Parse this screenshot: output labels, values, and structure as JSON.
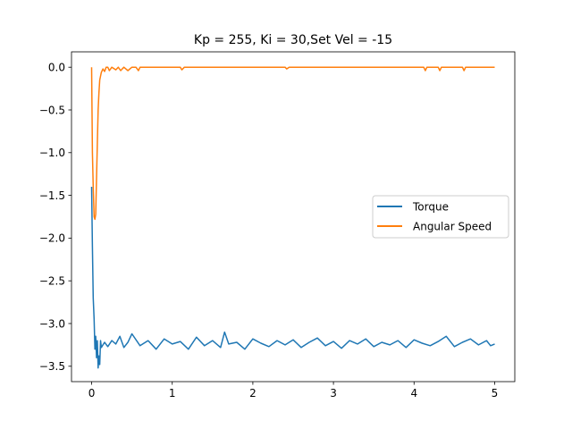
{
  "chart_data": {
    "type": "line",
    "title": "Kp = 255, Ki = 30,Set Vel = -15",
    "xlabel": "",
    "ylabel": "",
    "xlim": [
      -0.25,
      5.25
    ],
    "ylim": [
      -3.68,
      0.18
    ],
    "xticks": [
      0,
      1,
      2,
      3,
      4,
      5
    ],
    "xtick_labels": [
      "0",
      "1",
      "2",
      "3",
      "4",
      "5"
    ],
    "yticks": [
      0.0,
      -0.5,
      -1.0,
      -1.5,
      -2.0,
      -2.5,
      -3.0,
      -3.5
    ],
    "ytick_labels": [
      "0.0",
      "−0.5",
      "−1.0",
      "−1.5",
      "−2.0",
      "−2.5",
      "−3.0",
      "−3.5"
    ],
    "grid": false,
    "legend_position": "center-right",
    "series": [
      {
        "name": "Torque",
        "color": "#1f77b4",
        "x": [
          0,
          0.01,
          0.02,
          0.03,
          0.04,
          0.05,
          0.06,
          0.07,
          0.08,
          0.09,
          0.1,
          0.11,
          0.12,
          0.14,
          0.16,
          0.2,
          0.25,
          0.3,
          0.35,
          0.4,
          0.45,
          0.5,
          0.6,
          0.7,
          0.8,
          0.9,
          1.0,
          1.1,
          1.2,
          1.3,
          1.4,
          1.5,
          1.6,
          1.65,
          1.7,
          1.8,
          1.9,
          2.0,
          2.1,
          2.2,
          2.3,
          2.4,
          2.5,
          2.6,
          2.7,
          2.8,
          2.9,
          3.0,
          3.1,
          3.2,
          3.3,
          3.4,
          3.5,
          3.6,
          3.7,
          3.8,
          3.9,
          4.0,
          4.1,
          4.2,
          4.3,
          4.4,
          4.5,
          4.6,
          4.7,
          4.8,
          4.9,
          4.95,
          5.0
        ],
        "y": [
          -1.4,
          -2.1,
          -2.7,
          -2.95,
          -3.3,
          -3.15,
          -3.4,
          -3.2,
          -3.52,
          -3.38,
          -3.48,
          -3.2,
          -3.28,
          -3.25,
          -3.22,
          -3.27,
          -3.2,
          -3.24,
          -3.15,
          -3.28,
          -3.22,
          -3.12,
          -3.26,
          -3.2,
          -3.3,
          -3.18,
          -3.24,
          -3.21,
          -3.3,
          -3.16,
          -3.26,
          -3.2,
          -3.28,
          -3.1,
          -3.24,
          -3.22,
          -3.3,
          -3.18,
          -3.23,
          -3.27,
          -3.2,
          -3.25,
          -3.19,
          -3.28,
          -3.22,
          -3.17,
          -3.26,
          -3.21,
          -3.29,
          -3.2,
          -3.24,
          -3.18,
          -3.27,
          -3.22,
          -3.25,
          -3.2,
          -3.28,
          -3.19,
          -3.23,
          -3.26,
          -3.21,
          -3.15,
          -3.27,
          -3.22,
          -3.18,
          -3.25,
          -3.2,
          -3.26,
          -3.24
        ]
      },
      {
        "name": "Angular Speed",
        "color": "#ff7f0e",
        "x": [
          0,
          0.01,
          0.02,
          0.03,
          0.04,
          0.05,
          0.06,
          0.07,
          0.08,
          0.09,
          0.1,
          0.12,
          0.14,
          0.16,
          0.18,
          0.2,
          0.22,
          0.25,
          0.3,
          0.33,
          0.36,
          0.4,
          0.45,
          0.5,
          0.55,
          0.58,
          0.6,
          1.0,
          1.1,
          1.12,
          1.15,
          2.0,
          2.4,
          2.42,
          2.45,
          4.0,
          4.12,
          4.14,
          4.16,
          4.3,
          4.32,
          4.34,
          4.5,
          4.6,
          4.62,
          4.64,
          5.0
        ],
        "y": [
          0.0,
          -1.0,
          -1.4,
          -1.75,
          -1.78,
          -1.72,
          -1.3,
          -0.9,
          -0.5,
          -0.3,
          -0.15,
          -0.06,
          -0.02,
          -0.05,
          0.0,
          0.0,
          -0.04,
          0.0,
          -0.03,
          0.0,
          -0.04,
          0.0,
          -0.04,
          0.0,
          0.0,
          -0.04,
          0.0,
          0.0,
          0.0,
          -0.03,
          0.0,
          0.0,
          0.0,
          -0.02,
          0.0,
          0.0,
          0.0,
          -0.04,
          0.0,
          0.0,
          -0.04,
          0.0,
          0.0,
          0.0,
          -0.04,
          0.0,
          0.0
        ]
      }
    ]
  }
}
